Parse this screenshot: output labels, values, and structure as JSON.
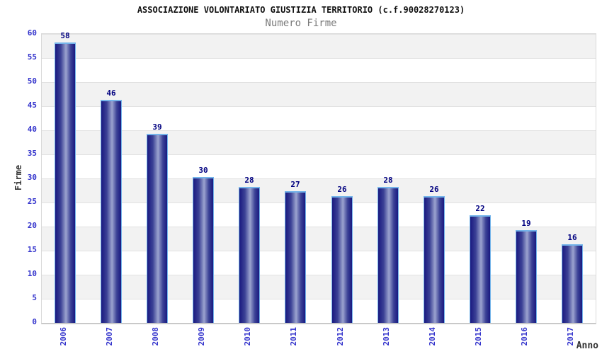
{
  "chart_data": {
    "type": "bar",
    "title": "ASSOCIAZIONE VOLONTARIATO GIUSTIZIA TERRITORIO (c.f.90028270123)",
    "subtitle": "Numero Firme",
    "xlabel": "Anno",
    "ylabel": "Firme",
    "categories": [
      "2006",
      "2007",
      "2008",
      "2009",
      "2010",
      "2011",
      "2012",
      "2013",
      "2014",
      "2015",
      "2016",
      "2017"
    ],
    "values": [
      58,
      46,
      39,
      30,
      28,
      27,
      26,
      28,
      26,
      22,
      19,
      16
    ],
    "ylim": [
      0,
      60
    ],
    "ytick_step": 5,
    "yticks": [
      0,
      5,
      10,
      15,
      20,
      25,
      30,
      35,
      40,
      45,
      50,
      55,
      60
    ],
    "grid": true,
    "legend": "none",
    "colors": {
      "bar_dark": "#191980",
      "bar_highlight": "#9ba3cf",
      "bar_border": "#74b4ea",
      "value_label": "#000080",
      "axis_tick_text": "#3333cc",
      "band_gray": "#f2f2f2",
      "gridline": "#e2e2e2",
      "title_text": "#111111",
      "subtitle_text": "#7a7a7a"
    }
  }
}
